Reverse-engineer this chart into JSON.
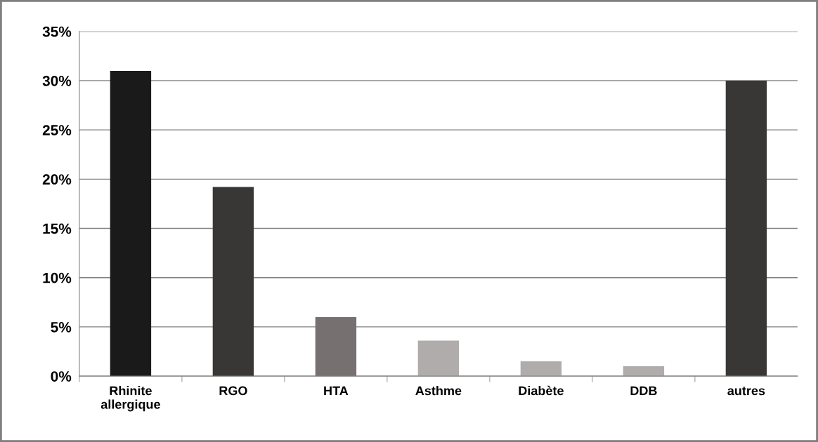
{
  "chart_data": {
    "type": "bar",
    "categories": [
      "Rhinite\nallergique",
      "RGO",
      "HTA",
      "Asthme",
      "Diabète",
      "DDB",
      "autres"
    ],
    "values": [
      31,
      19.2,
      6,
      3.6,
      1.5,
      1,
      30
    ],
    "colors": [
      "#1a1a1a",
      "#393735",
      "#767170",
      "#b0acab",
      "#b0acab",
      "#b0acab",
      "#393735"
    ],
    "ylim": [
      0,
      35
    ],
    "yticks": [
      {
        "value": 0,
        "label": "0%"
      },
      {
        "value": 5,
        "label": "5%"
      },
      {
        "value": 10,
        "label": "10%"
      },
      {
        "value": 15,
        "label": "15%"
      },
      {
        "value": 20,
        "label": "20%"
      },
      {
        "value": 25,
        "label": "25%"
      },
      {
        "value": 30,
        "label": "30%"
      },
      {
        "value": 35,
        "label": "35%"
      }
    ],
    "grid": "y"
  }
}
